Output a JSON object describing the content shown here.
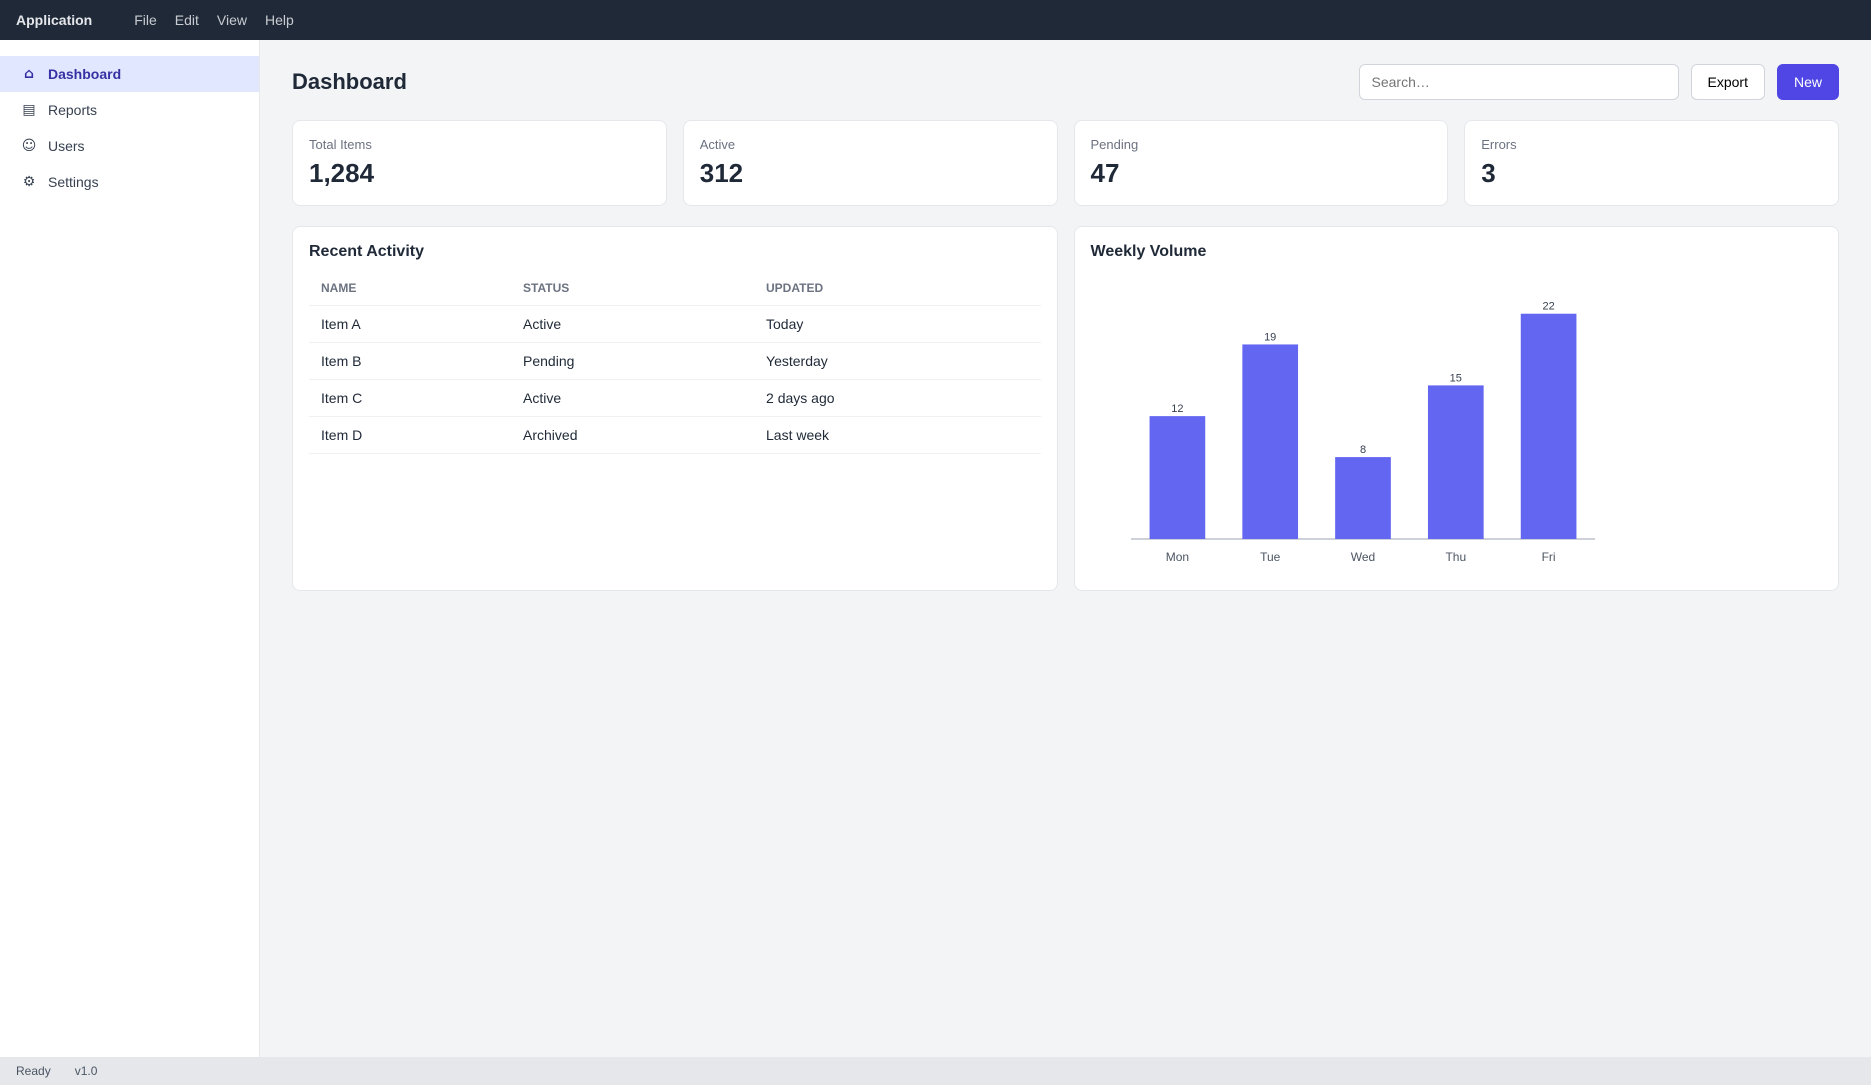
{
  "app": {
    "title": "Application",
    "menu": [
      "File",
      "Edit",
      "View",
      "Help"
    ]
  },
  "sidebar": {
    "items": [
      {
        "label": "Dashboard",
        "icon": "home-icon",
        "active": true
      },
      {
        "label": "Reports",
        "icon": "chart-icon",
        "active": false
      },
      {
        "label": "Users",
        "icon": "users-icon",
        "active": false
      },
      {
        "label": "Settings",
        "icon": "gear-icon",
        "active": false
      }
    ]
  },
  "toolbar": {
    "title": "Dashboard",
    "search_placeholder": "Search…",
    "export_label": "Export",
    "new_label": "New"
  },
  "cards": [
    {
      "label": "Total Items",
      "value": "1,284"
    },
    {
      "label": "Active",
      "value": "312"
    },
    {
      "label": "Pending",
      "value": "47"
    },
    {
      "label": "Errors",
      "value": "3"
    }
  ],
  "table": {
    "title": "Recent Activity",
    "columns": [
      "Name",
      "Status",
      "Updated"
    ],
    "rows": [
      [
        "Item A",
        "Active",
        "Today"
      ],
      [
        "Item B",
        "Pending",
        "Yesterday"
      ],
      [
        "Item C",
        "Active",
        "2 days ago"
      ],
      [
        "Item D",
        "Archived",
        "Last week"
      ]
    ]
  },
  "chart_data": {
    "type": "bar",
    "title": "Weekly Volume",
    "categories": [
      "Mon",
      "Tue",
      "Wed",
      "Thu",
      "Fri"
    ],
    "values": [
      12,
      19,
      8,
      15,
      22
    ],
    "ylim": [
      0,
      25
    ]
  },
  "status": {
    "left": "Ready",
    "right": "v1.0"
  }
}
